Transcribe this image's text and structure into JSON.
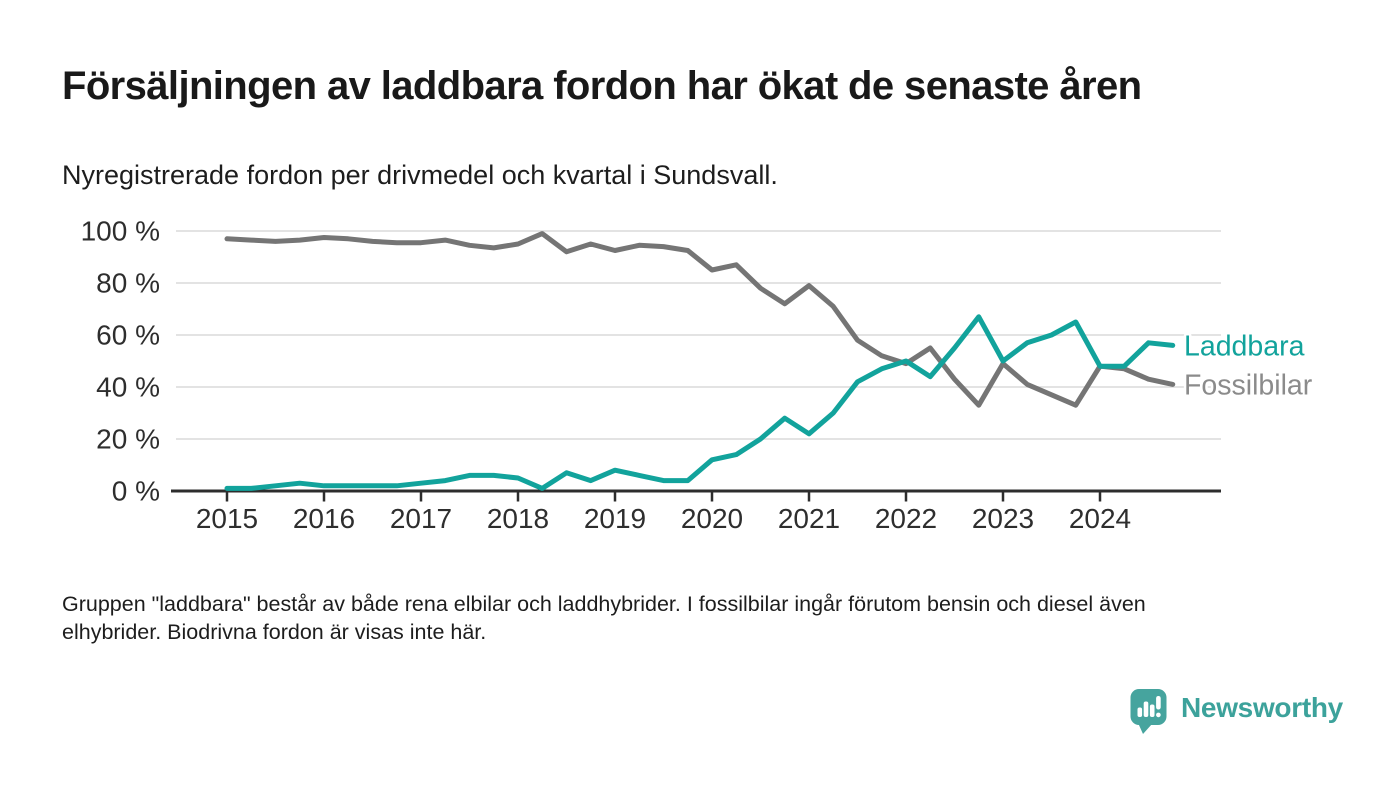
{
  "chart_data": {
    "type": "line",
    "title": "Försäljningen av laddbara fordon har ökat de senaste åren",
    "subtitle": "Nyregistrerade fordon per drivmedel och kvartal i Sundsvall.",
    "footnote_lines": [
      "Gruppen \"laddbara\" består av både rena elbilar och laddhybrider. I fossilbilar ingår förutom bensin och diesel även",
      "elhybrider. Biodrivna fordon är visas inte här."
    ],
    "x_start": "2015 Q1",
    "x_end": "2024 Q4",
    "x_step": "quarter",
    "x_tick_labels": [
      "2015",
      "2016",
      "2017",
      "2018",
      "2019",
      "2020",
      "2021",
      "2022",
      "2023",
      "2024"
    ],
    "y_tick_values": [
      0,
      20,
      40,
      60,
      80,
      100
    ],
    "y_tick_labels": [
      "0 %",
      "20 %",
      "40 %",
      "60 %",
      "80 %",
      "100 %"
    ],
    "ylim": [
      0,
      100
    ],
    "grid": "horizontal",
    "legend_position": "end-of-line",
    "series": [
      {
        "name": "Laddbara",
        "color": "#12A39C",
        "label_color": "#12A39C",
        "values": [
          1,
          1,
          2,
          3,
          2,
          2,
          2,
          2,
          3,
          4,
          6,
          6,
          5,
          1,
          7,
          4,
          8,
          6,
          4,
          4,
          12,
          14,
          20,
          28,
          22,
          30,
          42,
          47,
          50,
          44,
          55,
          67,
          50,
          57,
          60,
          65,
          48,
          48,
          57,
          56
        ]
      },
      {
        "name": "Fossilbilar",
        "color": "#757575",
        "label_color": "#8B8B8B",
        "values": [
          97,
          96.5,
          96,
          96.5,
          97.5,
          97,
          96,
          95.5,
          95.5,
          96.5,
          94.5,
          93.5,
          95,
          99,
          92,
          95,
          92.5,
          94.5,
          94,
          92.5,
          85,
          87,
          78,
          72,
          79,
          71,
          58,
          52,
          49,
          55,
          43,
          33,
          49,
          41,
          37,
          33,
          48,
          47,
          43,
          41
        ]
      }
    ]
  },
  "branding": {
    "logo_text": "Newsworthy",
    "logo_icon": "newsworthy-speech-bubble-bar-chart-icon",
    "brand_color": "#3CA29B"
  }
}
